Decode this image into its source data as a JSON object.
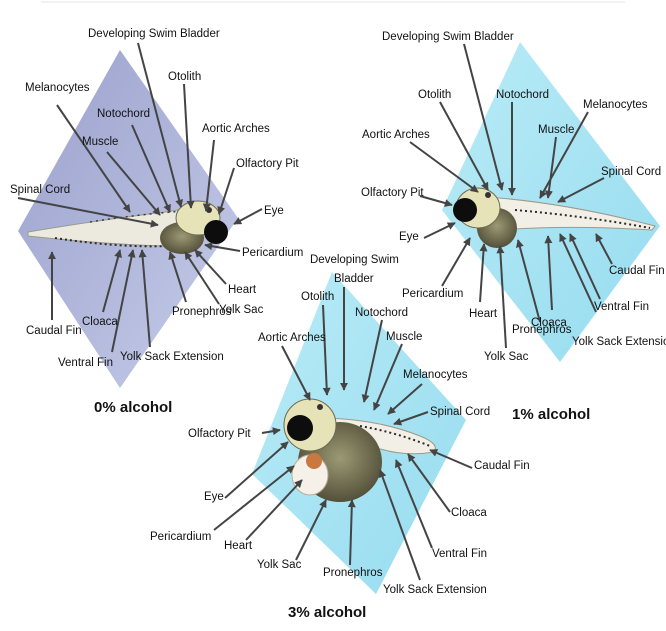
{
  "colors": {
    "panel_0": "#aab2dd",
    "panel_1": "#a8e2f2",
    "panel_3": "#a8e2f2",
    "arrow": "#444444",
    "text": "#111111"
  },
  "panels": [
    {
      "id": "p0",
      "caption": "0% alcohol",
      "labels": [
        "Developing Swim Bladder",
        "Melanocytes",
        "Notochord",
        "Otolith",
        "Muscle",
        "Aortic Arches",
        "Olfactory Pit",
        "Spinal Cord",
        "Eye",
        "Pericardium",
        "Heart",
        "Yolk Sac",
        "Caudal Fin",
        "Cloaca",
        "Pronephros",
        "Ventral Fin",
        "Yolk Sack Extension"
      ]
    },
    {
      "id": "p1",
      "caption": "1% alcohol",
      "labels": [
        "Developing Swim Bladder",
        "Otolith",
        "Notochord",
        "Melanocytes",
        "Aortic Arches",
        "Muscle",
        "Spinal Cord",
        "Olfactory Pit",
        "Eye",
        "Caudal Fin",
        "Pericardium",
        "Ventral Fin",
        "Heart",
        "Cloaca",
        "Yolk Sack Extension",
        "Pronephros",
        "Yolk Sac"
      ]
    },
    {
      "id": "p3",
      "caption": "3% alcohol",
      "labels": [
        "Developing Swim",
        "Bladder",
        "Otolith",
        "Notochord",
        "Muscle",
        "Aortic Arches",
        "Melanocytes",
        "Spinal Cord",
        "Olfactory Pit",
        "Caudal Fin",
        "Eye",
        "Cloaca",
        "Pericardium",
        "Heart",
        "Ventral Fin",
        "Yolk Sac",
        "Pronephros",
        "Yolk Sack Extension"
      ]
    }
  ]
}
